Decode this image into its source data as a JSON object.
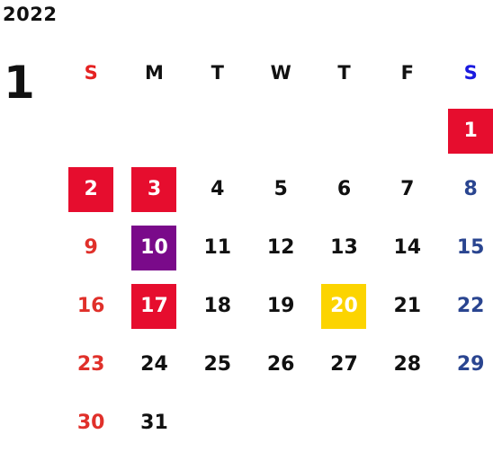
{
  "year": "2022",
  "month": "1",
  "colors": {
    "holiday": "#e60d2e",
    "special": "#7a0a8a",
    "event": "#fcd400",
    "sunday_text": "#e0302a",
    "saturday_text": "#2a4590"
  },
  "weekdays": [
    "S",
    "M",
    "T",
    "W",
    "T",
    "F",
    "S"
  ],
  "weeks": [
    [
      null,
      null,
      null,
      null,
      null,
      null,
      {
        "day": "1",
        "mark": "holiday"
      }
    ],
    [
      {
        "day": "2",
        "mark": "holiday"
      },
      {
        "day": "3",
        "mark": "holiday"
      },
      {
        "day": "4"
      },
      {
        "day": "5"
      },
      {
        "day": "6"
      },
      {
        "day": "7"
      },
      {
        "day": "8"
      }
    ],
    [
      {
        "day": "9"
      },
      {
        "day": "10",
        "mark": "special"
      },
      {
        "day": "11"
      },
      {
        "day": "12"
      },
      {
        "day": "13"
      },
      {
        "day": "14"
      },
      {
        "day": "15"
      }
    ],
    [
      {
        "day": "16"
      },
      {
        "day": "17",
        "mark": "holiday"
      },
      {
        "day": "18"
      },
      {
        "day": "19"
      },
      {
        "day": "20",
        "mark": "event"
      },
      {
        "day": "21"
      },
      {
        "day": "22"
      }
    ],
    [
      {
        "day": "23"
      },
      {
        "day": "24"
      },
      {
        "day": "25"
      },
      {
        "day": "26"
      },
      {
        "day": "27"
      },
      {
        "day": "28"
      },
      {
        "day": "29"
      }
    ],
    [
      {
        "day": "30"
      },
      {
        "day": "31"
      },
      null,
      null,
      null,
      null,
      null
    ]
  ]
}
